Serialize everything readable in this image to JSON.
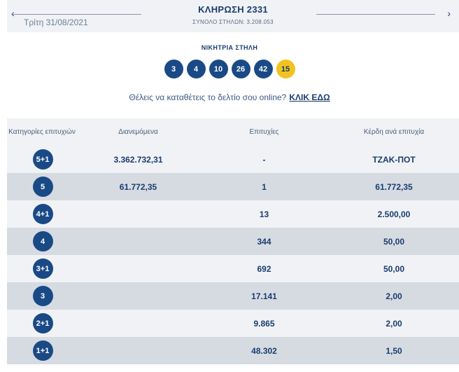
{
  "header": {
    "prev_icon": "chevron-left-icon",
    "prev_glyph": "‹",
    "next_icon": "chevron-right-icon",
    "next_glyph": "›",
    "date": "Τρίτη 31/08/2021",
    "title": "ΚΛΗΡΩΣΗ 2331",
    "subtitle": "ΣΥΝΟΛΟ ΣΤΗΛΩΝ: 3.208.053"
  },
  "winning": {
    "label": "ΝΙΚΗΤΡΙΑ ΣΤΗΛΗ",
    "numbers": [
      "3",
      "4",
      "10",
      "26",
      "42"
    ],
    "joker": "15",
    "joker_color": "#f2c320",
    "ball_color": "#1a4a86"
  },
  "cta": {
    "text": "Θέλεις να καταθέτεις το δελτίο σου online?",
    "link": "ΚΛΙΚ ΕΔΩ"
  },
  "table": {
    "headers": {
      "category": "Κατηγορίες επιτυχιών",
      "distributed": "Διανεμόμενα",
      "winners": "Επιτυχίες",
      "prize": "Κέρδη ανά επιτυχία"
    },
    "rows": [
      {
        "category": "5+1",
        "distributed": "3.362.732,31",
        "winners": "-",
        "prize": "ΤΖΑΚ-ΠΟΤ"
      },
      {
        "category": "5",
        "distributed": "61.772,35",
        "winners": "1",
        "prize": "61.772,35"
      },
      {
        "category": "4+1",
        "distributed": "",
        "winners": "13",
        "prize": "2.500,00"
      },
      {
        "category": "4",
        "distributed": "",
        "winners": "344",
        "prize": "50,00"
      },
      {
        "category": "3+1",
        "distributed": "",
        "winners": "692",
        "prize": "50,00"
      },
      {
        "category": "3",
        "distributed": "",
        "winners": "17.141",
        "prize": "2,00"
      },
      {
        "category": "2+1",
        "distributed": "",
        "winners": "9.865",
        "prize": "2,00"
      },
      {
        "category": "1+1",
        "distributed": "",
        "winners": "48.302",
        "prize": "1,50"
      }
    ]
  }
}
